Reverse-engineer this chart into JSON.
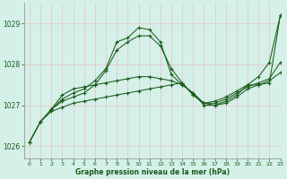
{
  "title": "Graphe pression niveau de la mer (hPa)",
  "bg_color": "#d4f0e8",
  "grid_color": "#e8c8cc",
  "line_color": "#1a5c1a",
  "xlim": [
    -0.5,
    23
  ],
  "ylim": [
    1025.7,
    1029.5
  ],
  "yticks": [
    1026,
    1027,
    1028,
    1029
  ],
  "xticks": [
    0,
    1,
    2,
    3,
    4,
    5,
    6,
    7,
    8,
    9,
    10,
    11,
    12,
    13,
    14,
    15,
    16,
    17,
    18,
    19,
    20,
    21,
    22,
    23
  ],
  "lines": [
    {
      "x": [
        0,
        1,
        2,
        3,
        4,
        5,
        6,
        7,
        8,
        9,
        10,
        11,
        12,
        13,
        14,
        15,
        16,
        17,
        18,
        19,
        20,
        21,
        22,
        23
      ],
      "y": [
        1026.1,
        1026.6,
        1026.85,
        1026.95,
        1027.05,
        1027.1,
        1027.15,
        1027.2,
        1027.25,
        1027.3,
        1027.35,
        1027.4,
        1027.45,
        1027.5,
        1027.55,
        1027.25,
        1027.05,
        1027.1,
        1027.2,
        1027.35,
        1027.5,
        1027.7,
        1028.05,
        1029.2
      ]
    },
    {
      "x": [
        0,
        1,
        2,
        3,
        4,
        5,
        6,
        7,
        8,
        9,
        10,
        11,
        12,
        13,
        14,
        15,
        16,
        17,
        18,
        19,
        20,
        21,
        22,
        23
      ],
      "y": [
        1026.1,
        1026.6,
        1026.9,
        1027.1,
        1027.2,
        1027.3,
        1027.5,
        1027.85,
        1028.35,
        1028.55,
        1028.7,
        1028.7,
        1028.45,
        1027.9,
        1027.55,
        1027.25,
        1027.05,
        1027.05,
        1027.15,
        1027.3,
        1027.45,
        1027.55,
        1027.65,
        1028.05
      ]
    },
    {
      "x": [
        0,
        1,
        2,
        3,
        4,
        5,
        6,
        7,
        8,
        9,
        10,
        11,
        12,
        13,
        14,
        15,
        16,
        17,
        18,
        19,
        20,
        21,
        22,
        23
      ],
      "y": [
        1026.1,
        1026.6,
        1026.9,
        1027.15,
        1027.3,
        1027.4,
        1027.6,
        1027.9,
        1028.55,
        1028.65,
        1028.9,
        1028.85,
        1028.55,
        1027.75,
        1027.5,
        1027.3,
        1027.05,
        1027.0,
        1027.1,
        1027.25,
        1027.5,
        1027.5,
        1027.6,
        1027.8
      ]
    },
    {
      "x": [
        2,
        3,
        4,
        5,
        6,
        7,
        8,
        9,
        10,
        11,
        12,
        13,
        14,
        15,
        16,
        17,
        18,
        19,
        20,
        21,
        22,
        23
      ],
      "y": [
        1026.9,
        1027.25,
        1027.4,
        1027.45,
        1027.5,
        1027.55,
        1027.6,
        1027.65,
        1027.7,
        1027.7,
        1027.65,
        1027.6,
        1027.5,
        1027.3,
        1027.0,
        1027.0,
        1027.05,
        1027.2,
        1027.4,
        1027.5,
        1027.55,
        1029.2
      ]
    }
  ]
}
